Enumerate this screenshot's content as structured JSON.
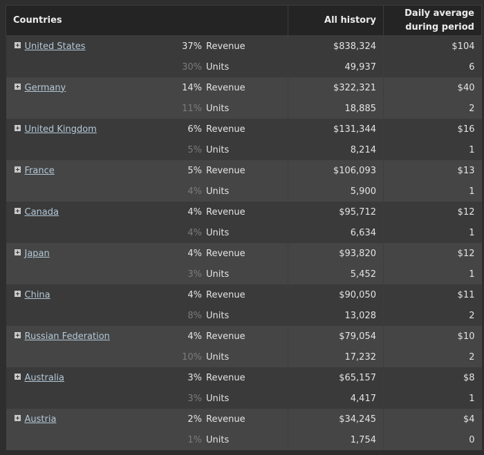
{
  "header": {
    "countries": "Countries",
    "all_history": "All history",
    "daily_line1": "Daily average",
    "daily_line2": "during period"
  },
  "rows": [
    {
      "country": "United States",
      "revenue_pct": "37%",
      "revenue_label": "Revenue",
      "revenue_all": "$838,324",
      "revenue_daily": "$104",
      "units_pct": "30%",
      "units_label": "Units",
      "units_all": "49,937",
      "units_daily": "6"
    },
    {
      "country": "Germany",
      "revenue_pct": "14%",
      "revenue_label": "Revenue",
      "revenue_all": "$322,321",
      "revenue_daily": "$40",
      "units_pct": "11%",
      "units_label": "Units",
      "units_all": "18,885",
      "units_daily": "2"
    },
    {
      "country": "United Kingdom",
      "revenue_pct": "6%",
      "revenue_label": "Revenue",
      "revenue_all": "$131,344",
      "revenue_daily": "$16",
      "units_pct": "5%",
      "units_label": "Units",
      "units_all": "8,214",
      "units_daily": "1"
    },
    {
      "country": "France",
      "revenue_pct": "5%",
      "revenue_label": "Revenue",
      "revenue_all": "$106,093",
      "revenue_daily": "$13",
      "units_pct": "4%",
      "units_label": "Units",
      "units_all": "5,900",
      "units_daily": "1"
    },
    {
      "country": "Canada",
      "revenue_pct": "4%",
      "revenue_label": "Revenue",
      "revenue_all": "$95,712",
      "revenue_daily": "$12",
      "units_pct": "4%",
      "units_label": "Units",
      "units_all": "6,634",
      "units_daily": "1"
    },
    {
      "country": "Japan",
      "revenue_pct": "4%",
      "revenue_label": "Revenue",
      "revenue_all": "$93,820",
      "revenue_daily": "$12",
      "units_pct": "3%",
      "units_label": "Units",
      "units_all": "5,452",
      "units_daily": "1"
    },
    {
      "country": "China",
      "revenue_pct": "4%",
      "revenue_label": "Revenue",
      "revenue_all": "$90,050",
      "revenue_daily": "$11",
      "units_pct": "8%",
      "units_label": "Units",
      "units_all": "13,028",
      "units_daily": "2"
    },
    {
      "country": "Russian Federation",
      "revenue_pct": "4%",
      "revenue_label": "Revenue",
      "revenue_all": "$79,054",
      "revenue_daily": "$10",
      "units_pct": "10%",
      "units_label": "Units",
      "units_all": "17,232",
      "units_daily": "2"
    },
    {
      "country": "Australia",
      "revenue_pct": "3%",
      "revenue_label": "Revenue",
      "revenue_all": "$65,157",
      "revenue_daily": "$8",
      "units_pct": "3%",
      "units_label": "Units",
      "units_all": "4,417",
      "units_daily": "1"
    },
    {
      "country": "Austria",
      "revenue_pct": "2%",
      "revenue_label": "Revenue",
      "revenue_all": "$34,245",
      "revenue_daily": "$4",
      "units_pct": "1%",
      "units_label": "Units",
      "units_all": "1,754",
      "units_daily": "0"
    }
  ],
  "colors": {
    "background": "#2e2e2e",
    "header_bg": "#242424",
    "row_odd": "#3a3a3a",
    "row_even": "#454545",
    "link": "#b4c9d8",
    "muted_pct": "#7c7c7c"
  },
  "icons": {
    "expand": "plus-box-icon"
  }
}
